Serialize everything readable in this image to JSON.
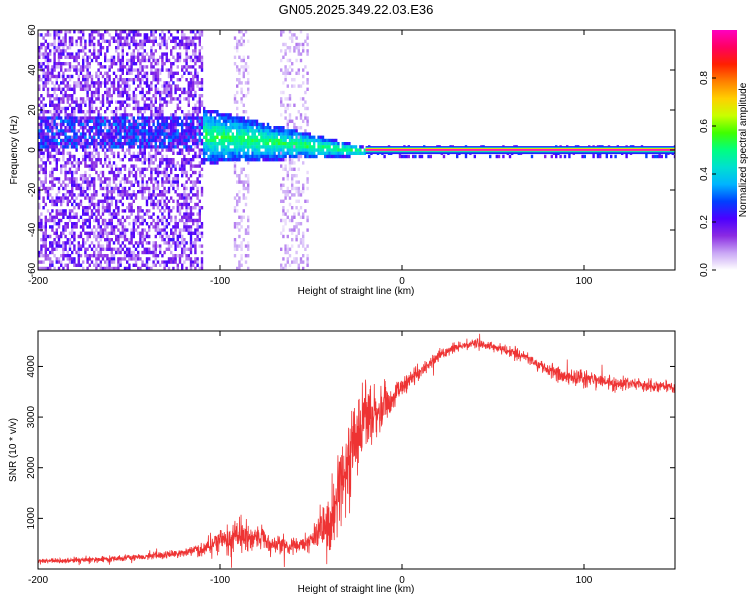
{
  "title": "GN05.2025.349.22.03.E36",
  "chart_data": [
    {
      "type": "heatmap",
      "name": "spectrogram",
      "xlabel": "Height of straight line (km)",
      "ylabel": "Frequency (Hz)",
      "xlim": [
        -200,
        150
      ],
      "ylim": [
        -60,
        60
      ],
      "xticks": [
        -200,
        -100,
        0,
        100
      ],
      "yticks": [
        -60,
        -40,
        -20,
        0,
        20,
        40,
        60
      ],
      "colorbar": {
        "label": "Normalized spectral amplitude",
        "range": [
          0,
          1
        ],
        "ticks": [
          0.0,
          0.2,
          0.4,
          0.6,
          0.8
        ],
        "stops": [
          "#ffffff",
          "#c9a6f5",
          "#8a2be2",
          "#4b00ff",
          "#0040ff",
          "#00b4ff",
          "#00e0d0",
          "#00ff80",
          "#40ff00",
          "#c8ff00",
          "#ffd000",
          "#ff8000",
          "#ff2000",
          "#ff0060",
          "#ff00c0"
        ]
      },
      "features": {
        "carrier_frequency_hz": 0,
        "carrier_amplitude": 1.0,
        "noise_floor_amplitude_below_x_-110": 0.2,
        "turbulent_region_x": [
          -110,
          -20
        ],
        "weak_noise_columns_x": [
          [
            -93,
            -85
          ],
          [
            -68,
            -52
          ]
        ]
      }
    },
    {
      "type": "line",
      "name": "snr",
      "xlabel": "Height of straight line (km)",
      "ylabel": "SNR (10 * v/v)",
      "xlim": [
        -200,
        150
      ],
      "ylim": [
        0,
        4700
      ],
      "xticks": [
        -200,
        -100,
        0,
        100
      ],
      "yticks": [
        1000,
        2000,
        3000,
        4000
      ],
      "series": [
        {
          "name": "SNR",
          "color": "#ee3333",
          "x": [
            -200,
            -180,
            -160,
            -140,
            -120,
            -110,
            -100,
            -90,
            -80,
            -70,
            -60,
            -50,
            -40,
            -35,
            -30,
            -25,
            -20,
            -15,
            -10,
            -5,
            0,
            5,
            10,
            20,
            30,
            40,
            50,
            60,
            70,
            80,
            90,
            100,
            110,
            120,
            130,
            140,
            150
          ],
          "values": [
            150,
            170,
            200,
            250,
            320,
            400,
            550,
            650,
            600,
            500,
            450,
            550,
            900,
            1500,
            2000,
            2600,
            3000,
            3100,
            3200,
            3400,
            3600,
            3800,
            3900,
            4200,
            4400,
            4450,
            4400,
            4300,
            4150,
            3950,
            3800,
            3750,
            3700,
            3650,
            3650,
            3600,
            3600
          ],
          "noise_amplitude": [
            80,
            80,
            90,
            100,
            120,
            200,
            350,
            550,
            400,
            300,
            250,
            350,
            900,
            1200,
            1300,
            1300,
            1100,
            800,
            600,
            450,
            350,
            300,
            250,
            180,
            150,
            150,
            150,
            160,
            180,
            220,
            250,
            260,
            240,
            200,
            180,
            160,
            150
          ]
        }
      ]
    }
  ]
}
